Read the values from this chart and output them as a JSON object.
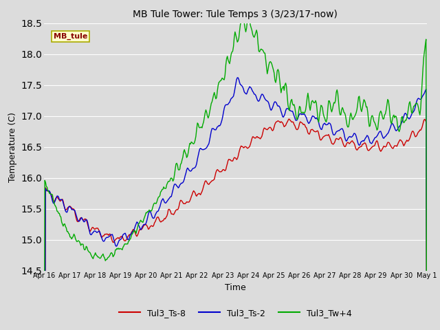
{
  "title": "MB Tule Tower: Tule Temps 3 (3/23/17-now)",
  "xlabel": "Time",
  "ylabel": "Temperature (C)",
  "ylim": [
    14.5,
    18.5
  ],
  "plot_bg_color": "#dcdcdc",
  "grid_color": "white",
  "series": {
    "Tul3_Ts-8": {
      "color": "#cc0000",
      "lw": 1.0
    },
    "Tul3_Ts-2": {
      "color": "#0000cc",
      "lw": 1.0
    },
    "Tul3_Tw+4": {
      "color": "#00aa00",
      "lw": 1.0
    }
  },
  "legend_box": {
    "label": "MB_tule",
    "facecolor": "#ffffcc",
    "edgecolor": "#aaaa00",
    "text_color": "#880000",
    "fontsize": 8
  },
  "xtick_labels": [
    "Apr 16",
    "Apr 17",
    "Apr 18",
    "Apr 19",
    "Apr 20",
    "Apr 21",
    "Apr 22",
    "Apr 23",
    "Apr 24",
    "Apr 25",
    "Apr 26",
    "Apr 27",
    "Apr 28",
    "Apr 29",
    "Apr 30",
    "May 1"
  ],
  "num_points": 500
}
